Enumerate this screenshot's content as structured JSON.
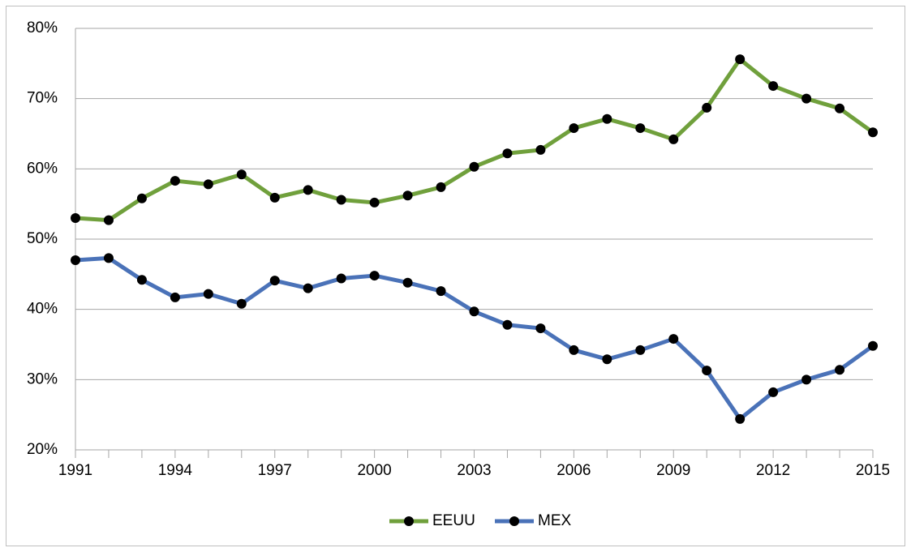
{
  "chart_data": {
    "type": "line",
    "x": [
      1991,
      1992,
      1993,
      1994,
      1995,
      1996,
      1997,
      1998,
      1999,
      2000,
      2001,
      2002,
      2003,
      2004,
      2005,
      2006,
      2007,
      2008,
      2009,
      2010,
      2011,
      2012,
      2013,
      2014,
      2015
    ],
    "series": [
      {
        "name": "EEUU",
        "color": "#70a03c",
        "values": [
          53.0,
          52.7,
          55.8,
          58.3,
          57.8,
          59.2,
          55.9,
          57.0,
          55.6,
          55.2,
          56.2,
          57.4,
          60.3,
          62.2,
          62.7,
          65.8,
          67.1,
          65.8,
          64.2,
          68.7,
          75.6,
          71.8,
          70.0,
          68.6,
          65.2
        ]
      },
      {
        "name": "MEX",
        "color": "#4a72b8",
        "values": [
          47.0,
          47.3,
          44.2,
          41.7,
          42.2,
          40.8,
          44.1,
          43.0,
          44.4,
          44.8,
          43.8,
          42.6,
          39.7,
          37.8,
          37.3,
          34.2,
          32.9,
          34.2,
          35.8,
          31.3,
          24.4,
          28.2,
          30.0,
          31.4,
          34.8
        ]
      }
    ],
    "xlim": [
      1991,
      2015
    ],
    "xticks": [
      1991,
      1994,
      1997,
      2000,
      2003,
      2006,
      2009,
      2012,
      2015
    ],
    "ylim": [
      20,
      80
    ],
    "yticks": [
      {
        "value": 20,
        "label": "20%"
      },
      {
        "value": 30,
        "label": "30%"
      },
      {
        "value": 40,
        "label": "40%"
      },
      {
        "value": 50,
        "label": "50%"
      },
      {
        "value": 60,
        "label": "60%"
      },
      {
        "value": 70,
        "label": "70%"
      },
      {
        "value": 80,
        "label": "80%"
      }
    ],
    "grid": true,
    "legend": "bottom"
  }
}
